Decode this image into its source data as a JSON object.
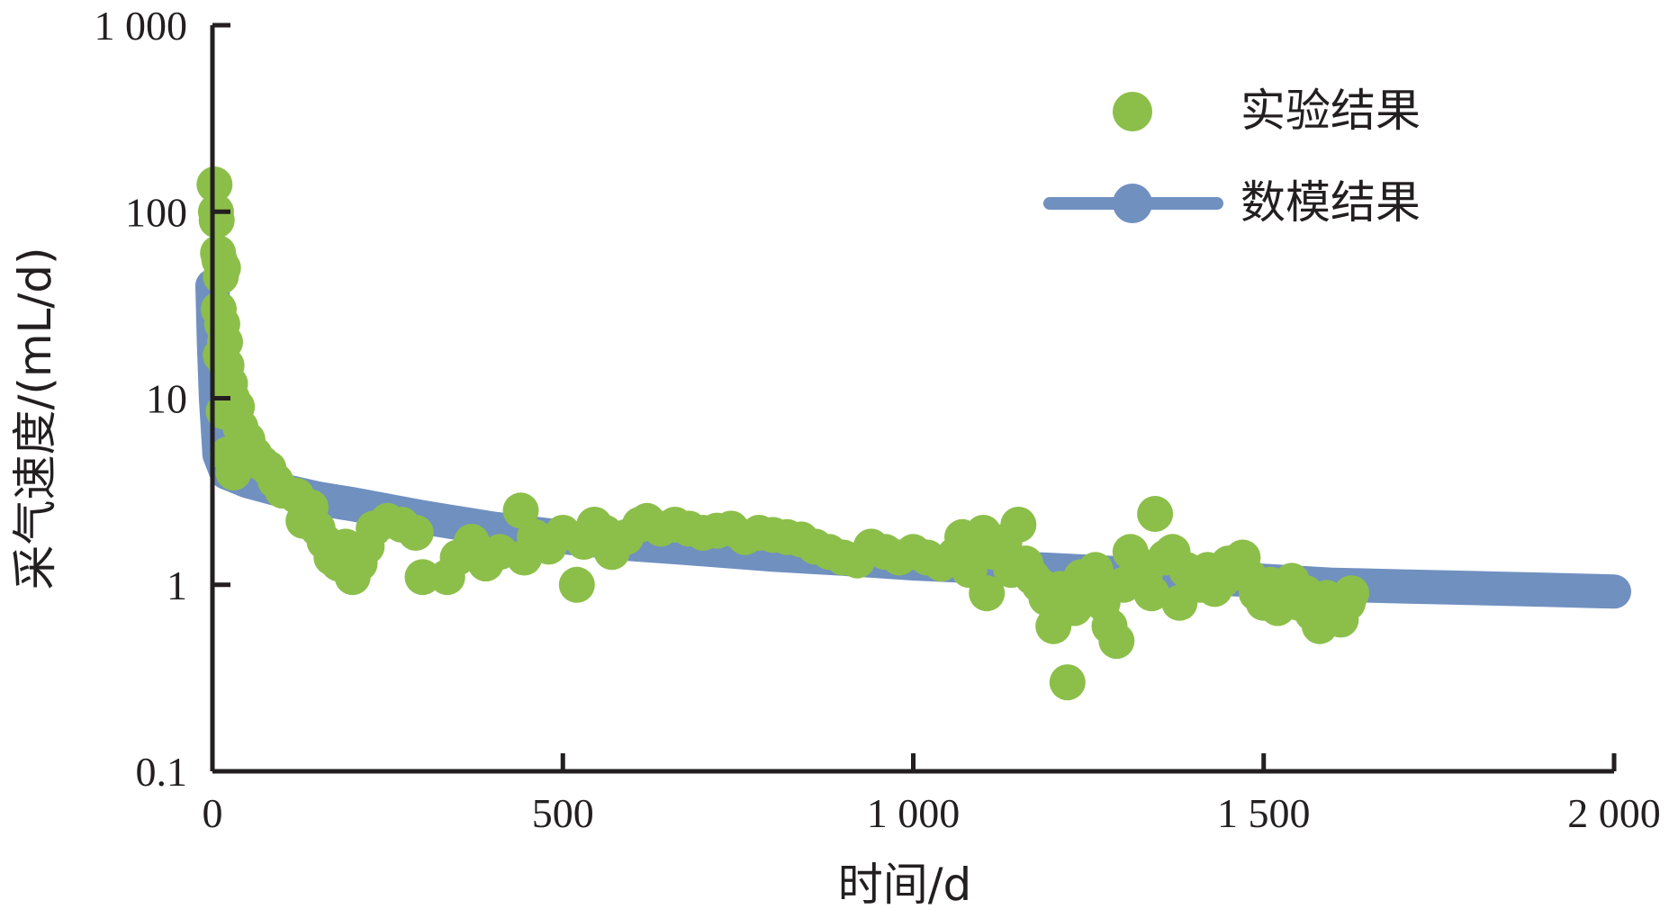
{
  "chart_data": {
    "type": "scatter",
    "x_scale": "linear",
    "y_scale": "log",
    "xlim": [
      0,
      2000
    ],
    "ylim": [
      0.1,
      1000
    ],
    "xlabel": "时间/d",
    "ylabel": "采气速度/(mL/d)",
    "x_ticks": [
      {
        "value": 0,
        "label": "0"
      },
      {
        "value": 500,
        "label": "500"
      },
      {
        "value": 1000,
        "label": "1 000"
      },
      {
        "value": 1500,
        "label": "1 500"
      },
      {
        "value": 2000,
        "label": "2 000"
      }
    ],
    "y_ticks": [
      {
        "value": 0.1,
        "label": "0.1"
      },
      {
        "value": 1,
        "label": "1"
      },
      {
        "value": 10,
        "label": "10"
      },
      {
        "value": 100,
        "label": "100"
      },
      {
        "value": 1000,
        "label": "1 000"
      }
    ],
    "legend_position": "top-right",
    "legend": [
      {
        "label": "实验结果",
        "marker": "circle",
        "color": "#8cbf4a"
      },
      {
        "label": "数模结果",
        "marker": "line-circle",
        "color": "#7090c0"
      }
    ],
    "series": [
      {
        "name": "实验结果",
        "kind": "scatter",
        "color": "#8cbf4a",
        "points": [
          [
            3,
            140
          ],
          [
            5,
            100
          ],
          [
            6,
            90
          ],
          [
            8,
            60
          ],
          [
            10,
            55
          ],
          [
            12,
            45
          ],
          [
            15,
            50
          ],
          [
            9,
            30
          ],
          [
            14,
            25
          ],
          [
            18,
            20
          ],
          [
            12,
            17
          ],
          [
            20,
            15
          ],
          [
            25,
            12
          ],
          [
            16,
            8.5
          ],
          [
            28,
            10
          ],
          [
            35,
            9
          ],
          [
            40,
            7
          ],
          [
            22,
            5
          ],
          [
            30,
            4
          ],
          [
            45,
            6
          ],
          [
            50,
            6
          ],
          [
            60,
            5
          ],
          [
            70,
            4.5
          ],
          [
            80,
            4.2
          ],
          [
            90,
            3.6
          ],
          [
            100,
            3.2
          ],
          [
            120,
            3
          ],
          [
            140,
            2.6
          ],
          [
            130,
            2.2
          ],
          [
            150,
            2
          ],
          [
            160,
            1.7
          ],
          [
            170,
            1.4
          ],
          [
            180,
            1.3
          ],
          [
            190,
            1.6
          ],
          [
            200,
            1.1
          ],
          [
            210,
            1.3
          ],
          [
            220,
            1.6
          ],
          [
            230,
            2
          ],
          [
            250,
            2.2
          ],
          [
            270,
            2.1
          ],
          [
            290,
            1.9
          ],
          [
            300,
            1.1
          ],
          [
            335,
            1.1
          ],
          [
            350,
            1.4
          ],
          [
            370,
            1.7
          ],
          [
            390,
            1.3
          ],
          [
            410,
            1.5
          ],
          [
            440,
            2.5
          ],
          [
            445,
            1.4
          ],
          [
            460,
            1.8
          ],
          [
            480,
            1.6
          ],
          [
            500,
            1.9
          ],
          [
            520,
            1.0
          ],
          [
            530,
            1.7
          ],
          [
            545,
            2.1
          ],
          [
            560,
            1.9
          ],
          [
            570,
            1.5
          ],
          [
            590,
            1.8
          ],
          [
            610,
            2.1
          ],
          [
            620,
            2.2
          ],
          [
            640,
            2.0
          ],
          [
            660,
            2.1
          ],
          [
            680,
            2.0
          ],
          [
            700,
            1.9
          ],
          [
            720,
            1.95
          ],
          [
            740,
            2.0
          ],
          [
            760,
            1.8
          ],
          [
            780,
            1.9
          ],
          [
            800,
            1.85
          ],
          [
            820,
            1.8
          ],
          [
            840,
            1.75
          ],
          [
            860,
            1.6
          ],
          [
            880,
            1.5
          ],
          [
            900,
            1.4
          ],
          [
            920,
            1.35
          ],
          [
            940,
            1.6
          ],
          [
            960,
            1.5
          ],
          [
            980,
            1.4
          ],
          [
            1000,
            1.5
          ],
          [
            1020,
            1.4
          ],
          [
            1040,
            1.3
          ],
          [
            1060,
            1.45
          ],
          [
            1070,
            1.8
          ],
          [
            1080,
            1.2
          ],
          [
            1090,
            1.6
          ],
          [
            1100,
            1.9
          ],
          [
            1105,
            0.9
          ],
          [
            1115,
            1.5
          ],
          [
            1130,
            1.7
          ],
          [
            1140,
            1.2
          ],
          [
            1150,
            2.1
          ],
          [
            1160,
            1.3
          ],
          [
            1170,
            1.1
          ],
          [
            1180,
            1.0
          ],
          [
            1190,
            0.85
          ],
          [
            1200,
            0.6
          ],
          [
            1210,
            0.95
          ],
          [
            1220,
            0.3
          ],
          [
            1230,
            0.75
          ],
          [
            1240,
            1.1
          ],
          [
            1250,
            0.9
          ],
          [
            1260,
            1.2
          ],
          [
            1270,
            0.8
          ],
          [
            1280,
            0.6
          ],
          [
            1290,
            0.5
          ],
          [
            1300,
            1.0
          ],
          [
            1310,
            1.5
          ],
          [
            1320,
            1.3
          ],
          [
            1330,
            1.1
          ],
          [
            1340,
            0.9
          ],
          [
            1345,
            2.4
          ],
          [
            1360,
            1.4
          ],
          [
            1370,
            1.5
          ],
          [
            1380,
            0.8
          ],
          [
            1390,
            1.2
          ],
          [
            1400,
            1.1
          ],
          [
            1410,
            1.0
          ],
          [
            1420,
            1.2
          ],
          [
            1430,
            0.95
          ],
          [
            1440,
            1.05
          ],
          [
            1450,
            1.3
          ],
          [
            1460,
            1.2
          ],
          [
            1470,
            1.4
          ],
          [
            1480,
            1.1
          ],
          [
            1490,
            0.9
          ],
          [
            1500,
            0.8
          ],
          [
            1510,
            1.0
          ],
          [
            1520,
            0.75
          ],
          [
            1530,
            0.9
          ],
          [
            1540,
            1.05
          ],
          [
            1550,
            0.8
          ],
          [
            1560,
            0.9
          ],
          [
            1570,
            0.7
          ],
          [
            1580,
            0.6
          ],
          [
            1590,
            0.85
          ],
          [
            1600,
            0.75
          ],
          [
            1610,
            0.65
          ],
          [
            1620,
            0.8
          ],
          [
            1625,
            0.9
          ]
        ]
      },
      {
        "name": "数模结果",
        "kind": "line",
        "color": "#7090c0",
        "points": [
          [
            0,
            40
          ],
          [
            2,
            20
          ],
          [
            5,
            10
          ],
          [
            10,
            5
          ],
          [
            20,
            4
          ],
          [
            50,
            3.6
          ],
          [
            100,
            3.2
          ],
          [
            150,
            2.9
          ],
          [
            200,
            2.7
          ],
          [
            300,
            2.3
          ],
          [
            400,
            2.0
          ],
          [
            500,
            1.8
          ],
          [
            600,
            1.65
          ],
          [
            700,
            1.55
          ],
          [
            800,
            1.45
          ],
          [
            900,
            1.38
          ],
          [
            1000,
            1.3
          ],
          [
            1100,
            1.25
          ],
          [
            1200,
            1.2
          ],
          [
            1300,
            1.15
          ],
          [
            1400,
            1.1
          ],
          [
            1500,
            1.05
          ],
          [
            1600,
            1.0
          ],
          [
            1700,
            0.98
          ],
          [
            1800,
            0.96
          ],
          [
            1900,
            0.94
          ],
          [
            2000,
            0.92
          ]
        ]
      }
    ]
  }
}
